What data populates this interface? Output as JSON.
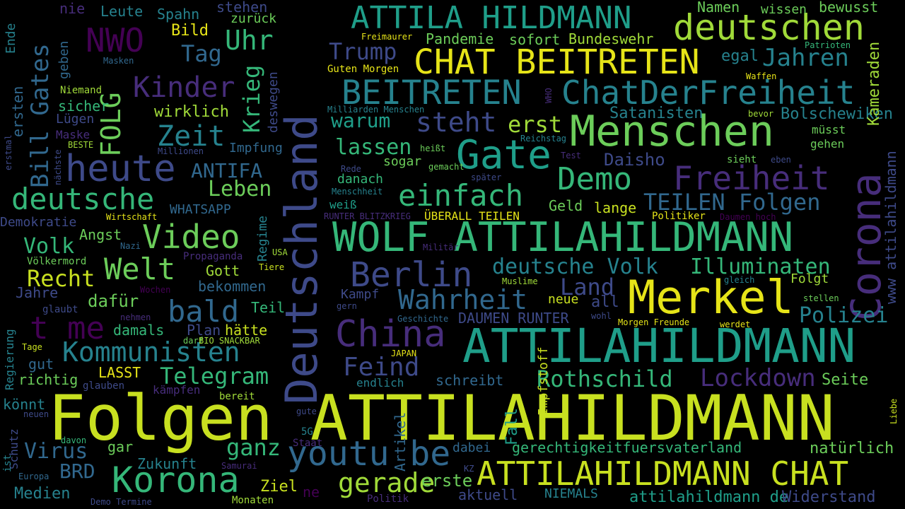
{
  "palette": {
    "background": "#000000",
    "lime": "#c8e020",
    "yellow": "#e6e418",
    "green": "#6ccd5a",
    "teal_green": "#35b779",
    "teal": "#1f9e89",
    "blue_teal": "#26828e",
    "blue": "#31688e",
    "indigo": "#3e4a89",
    "purple": "#472d7b",
    "dark_purple": "#440154"
  },
  "words": [
    {
      "text": "Folgen ATTILAHILDMANN",
      "color": "#c8e020"
    },
    {
      "text": "Deutschland",
      "color": "#3e4a89"
    },
    {
      "text": "ATTILAHILDMANN",
      "color": "#1f9e89"
    },
    {
      "text": "Menschen",
      "color": "#6ccd5a"
    },
    {
      "text": "WOLF ATTILAHILDMANN",
      "color": "#35b779"
    },
    {
      "text": "Merkel",
      "color": "#e6e418"
    },
    {
      "text": "Corona",
      "color": "#472d7b"
    },
    {
      "text": "Korona",
      "color": "#35b779"
    },
    {
      "text": "ATTILAHILDMANN CHAT",
      "color": "#c8e020"
    },
    {
      "text": "ATTILA HILDMANN",
      "color": "#1f9e89"
    },
    {
      "text": "deutschen",
      "color": "#a0da39"
    },
    {
      "text": "CHAT BEITRETEN",
      "color": "#e6e418"
    },
    {
      "text": "BEITRETEN",
      "color": "#26828e"
    },
    {
      "text": "ChatDerFreiheit",
      "color": "#26828e"
    },
    {
      "text": "Gate",
      "color": "#1f9e89"
    },
    {
      "text": "China",
      "color": "#472d7b"
    },
    {
      "text": "youtu be",
      "color": "#31688e"
    },
    {
      "text": "Berlin",
      "color": "#3e4a89"
    },
    {
      "text": "Video",
      "color": "#6ccd5a"
    },
    {
      "text": "Welt",
      "color": "#6ccd5a"
    },
    {
      "text": "heute",
      "color": "#3e4a89"
    },
    {
      "text": "Freiheit",
      "color": "#472d7b"
    },
    {
      "text": "einfach",
      "color": "#35b779"
    },
    {
      "text": "Demo",
      "color": "#35b779"
    },
    {
      "text": "Kommunisten",
      "color": "#26828e"
    },
    {
      "text": "bald",
      "color": "#31688e"
    },
    {
      "text": "t me",
      "color": "#440154"
    },
    {
      "text": "deutsche",
      "color": "#35b779"
    },
    {
      "text": "Kinder",
      "color": "#472d7b"
    },
    {
      "text": "NWO",
      "color": "#440154"
    },
    {
      "text": "FOLG",
      "color": "#6ccd5a"
    },
    {
      "text": "Bill Gates",
      "color": "#31688e"
    },
    {
      "text": "Zeit",
      "color": "#26828e"
    },
    {
      "text": "Wahrheit",
      "color": "#31688e"
    },
    {
      "text": "Lockdown",
      "color": "#472d7b"
    },
    {
      "text": "Rothschild",
      "color": "#35b779"
    },
    {
      "text": "gerade",
      "color": "#a0da39"
    },
    {
      "text": "Feind",
      "color": "#3e4a89"
    },
    {
      "text": "Telegram",
      "color": "#35b779"
    },
    {
      "text": "ganz",
      "color": "#35b779"
    },
    {
      "text": "Recht",
      "color": "#c8e020"
    },
    {
      "text": "deutsche Volk",
      "color": "#26828e"
    },
    {
      "text": "Illuminaten",
      "color": "#35b779"
    },
    {
      "text": "Jahren",
      "color": "#26828e"
    },
    {
      "text": "Trump",
      "color": "#3e4a89"
    },
    {
      "text": "Uhr",
      "color": "#35b779"
    },
    {
      "text": "Krieg",
      "color": "#35b779"
    },
    {
      "text": "Tag",
      "color": "#31688e"
    },
    {
      "text": "steht",
      "color": "#3e4a89"
    },
    {
      "text": "erst",
      "color": "#a0da39"
    },
    {
      "text": "lassen",
      "color": "#35b779"
    },
    {
      "text": "warum",
      "color": "#1f9e89"
    },
    {
      "text": "Polizei",
      "color": "#26828e"
    },
    {
      "text": "Volk",
      "color": "#35b779"
    },
    {
      "text": "Leben",
      "color": "#6ccd5a"
    },
    {
      "text": "ANTIFA",
      "color": "#31688e"
    },
    {
      "text": "Land",
      "color": "#3e4a89"
    },
    {
      "text": "TEILEN Folgen",
      "color": "#31688e"
    },
    {
      "text": "Virus",
      "color": "#31688e"
    },
    {
      "text": "BRD",
      "color": "#31688e"
    },
    {
      "text": "Satanisten",
      "color": "#26828e"
    },
    {
      "text": "Bolschewiken",
      "color": "#26828e"
    },
    {
      "text": "Daisho",
      "color": "#3e4a89"
    },
    {
      "text": "Kameraden",
      "color": "#a0da39"
    },
    {
      "text": "www attilahildmann",
      "color": "#3e4a89"
    },
    {
      "text": "gerechtigkeitfuersvaterland",
      "color": "#35b779"
    },
    {
      "text": "attilahildmann de",
      "color": "#1f9e89"
    },
    {
      "text": "Widerstand",
      "color": "#3e4a89"
    },
    {
      "text": "natürlich",
      "color": "#6ccd5a"
    },
    {
      "text": "Seite",
      "color": "#6ccd5a"
    },
    {
      "text": "Impfstoff",
      "color": "#c8e020"
    },
    {
      "text": "Artikel",
      "color": "#31688e"
    },
    {
      "text": "Fall",
      "color": "#1f9e89"
    },
    {
      "text": "Zukunft",
      "color": "#26828e"
    },
    {
      "text": "Medien",
      "color": "#26828e"
    },
    {
      "text": "Ziel",
      "color": "#c8e020"
    },
    {
      "text": "Bundeswehr",
      "color": "#a0da39"
    },
    {
      "text": "Pandemie",
      "color": "#6ccd5a"
    },
    {
      "text": "sofort",
      "color": "#6ccd5a"
    },
    {
      "text": "Namen",
      "color": "#6ccd5a"
    },
    {
      "text": "wissen",
      "color": "#6ccd5a"
    },
    {
      "text": "bewusst",
      "color": "#6ccd5a"
    },
    {
      "text": "egal",
      "color": "#26828e"
    },
    {
      "text": "Leute",
      "color": "#26828e"
    },
    {
      "text": "Spahn",
      "color": "#26828e"
    },
    {
      "text": "stehen",
      "color": "#3e4a89"
    },
    {
      "text": "zurück",
      "color": "#6ccd5a"
    },
    {
      "text": "Bild",
      "color": "#e6e418"
    },
    {
      "text": "nie",
      "color": "#472d7b"
    },
    {
      "text": "Ende",
      "color": "#26828e"
    },
    {
      "text": "geben",
      "color": "#31688e"
    },
    {
      "text": "ersten",
      "color": "#31688e"
    },
    {
      "text": "Lügen",
      "color": "#3e4a89"
    },
    {
      "text": "Maske",
      "color": "#472d7b"
    },
    {
      "text": "BESTE",
      "color": "#a0da39"
    },
    {
      "text": "sicher",
      "color": "#35b779"
    },
    {
      "text": "Niemand",
      "color": "#a0da39"
    },
    {
      "text": "Masken",
      "color": "#31688e"
    },
    {
      "text": "wirklich",
      "color": "#a0da39"
    },
    {
      "text": "deswegen",
      "color": "#3e4a89"
    },
    {
      "text": "Impfung",
      "color": "#31688e"
    },
    {
      "text": "Millionen",
      "color": "#3e4a89"
    },
    {
      "text": "nächste",
      "color": "#3e4a89"
    },
    {
      "text": "erstmal",
      "color": "#3e4a89"
    },
    {
      "text": "Demokratie",
      "color": "#3e4a89"
    },
    {
      "text": "WHATSAPP",
      "color": "#31688e"
    },
    {
      "text": "Wirtschaft",
      "color": "#e6e418"
    },
    {
      "text": "Angst",
      "color": "#6ccd5a"
    },
    {
      "text": "Regime",
      "color": "#26828e"
    },
    {
      "text": "Nazi",
      "color": "#31688e"
    },
    {
      "text": "Propaganda",
      "color": "#472d7b"
    },
    {
      "text": "Völkermord",
      "color": "#6ccd5a"
    },
    {
      "text": "Gott",
      "color": "#a0da39"
    },
    {
      "text": "USA",
      "color": "#a0da39"
    },
    {
      "text": "Tiere",
      "color": "#c8e020"
    },
    {
      "text": "bekommen",
      "color": "#31688e"
    },
    {
      "text": "Jahre",
      "color": "#3e4a89"
    },
    {
      "text": "Wochen",
      "color": "#440154"
    },
    {
      "text": "dafür",
      "color": "#6ccd5a"
    },
    {
      "text": "Teil",
      "color": "#35b779"
    },
    {
      "text": "glaubt",
      "color": "#3e4a89"
    },
    {
      "text": "nehmen",
      "color": "#472d7b"
    },
    {
      "text": "damals",
      "color": "#35b779"
    },
    {
      "text": "Plan",
      "color": "#3e4a89"
    },
    {
      "text": "hätte",
      "color": "#c8e020"
    },
    {
      "text": "Regierung",
      "color": "#26828e"
    },
    {
      "text": "Tage",
      "color": "#c8e020"
    },
    {
      "text": "darf",
      "color": "#6ccd5a"
    },
    {
      "text": "BIO SNACKBAR",
      "color": "#a0da39"
    },
    {
      "text": "gut",
      "color": "#31688e"
    },
    {
      "text": "richtig",
      "color": "#6ccd5a"
    },
    {
      "text": "LASST",
      "color": "#e6e418"
    },
    {
      "text": "glauben",
      "color": "#3e4a89"
    },
    {
      "text": "kämpfen",
      "color": "#472d7b"
    },
    {
      "text": "bereit",
      "color": "#a0da39"
    },
    {
      "text": "könnt",
      "color": "#26828e"
    },
    {
      "text": "neuen",
      "color": "#3e4a89"
    },
    {
      "text": "gute",
      "color": "#3e4a89"
    },
    {
      "text": "Schutz",
      "color": "#3e4a89"
    },
    {
      "text": "davon",
      "color": "#35b779"
    },
    {
      "text": "ist",
      "color": "#26828e"
    },
    {
      "text": "gar",
      "color": "#6ccd5a"
    },
    {
      "text": "5G",
      "color": "#26828e"
    },
    {
      "text": "Staat",
      "color": "#472d7b"
    },
    {
      "text": "Samurai",
      "color": "#472d7b"
    },
    {
      "text": "Europa",
      "color": "#31688e"
    },
    {
      "text": "ne",
      "color": "#440154"
    },
    {
      "text": "Demo Termine",
      "color": "#3e4a89"
    },
    {
      "text": "Monaten",
      "color": "#a0da39"
    },
    {
      "text": "Politik",
      "color": "#472d7b"
    },
    {
      "text": "aktuell",
      "color": "#3e4a89"
    },
    {
      "text": "NIEMALS",
      "color": "#26828e"
    },
    {
      "text": "KZ",
      "color": "#3e4a89"
    },
    {
      "text": "Liebe",
      "color": "#c8e020"
    },
    {
      "text": "Freimaurer",
      "color": "#e6e418"
    },
    {
      "text": "Guten Morgen",
      "color": "#e6e418"
    },
    {
      "text": "Patrioten",
      "color": "#35b779"
    },
    {
      "text": "Waffen",
      "color": "#e6e418"
    },
    {
      "text": "WHO",
      "color": "#472d7b"
    },
    {
      "text": "Milliarden Menschen",
      "color": "#26828e"
    },
    {
      "text": "bevor",
      "color": "#a0da39"
    },
    {
      "text": "müsst",
      "color": "#6ccd5a"
    },
    {
      "text": "gehen",
      "color": "#6ccd5a"
    },
    {
      "text": "Reichstag",
      "color": "#26828e"
    },
    {
      "text": "heißt",
      "color": "#6ccd5a"
    },
    {
      "text": "gemacht",
      "color": "#6ccd5a"
    },
    {
      "text": "sogar",
      "color": "#6ccd5a"
    },
    {
      "text": "Rede",
      "color": "#3e4a89"
    },
    {
      "text": "Test",
      "color": "#472d7b"
    },
    {
      "text": "sieht",
      "color": "#6ccd5a"
    },
    {
      "text": "eben",
      "color": "#3e4a89"
    },
    {
      "text": "später",
      "color": "#3e4a89"
    },
    {
      "text": "danach",
      "color": "#35b779"
    },
    {
      "text": "Menschheit",
      "color": "#26828e"
    },
    {
      "text": "weiß",
      "color": "#1f9e89"
    },
    {
      "text": "RUNTER BLITZKRIEG",
      "color": "#472d7b"
    },
    {
      "text": "ÜBERALL TEILEN",
      "color": "#e6e418"
    },
    {
      "text": "Geld",
      "color": "#6ccd5a"
    },
    {
      "text": "lange",
      "color": "#c8e020"
    },
    {
      "text": "Politiker",
      "color": "#e6e418"
    },
    {
      "text": "Daumen hoch",
      "color": "#440154"
    },
    {
      "text": "Militär",
      "color": "#472d7b"
    },
    {
      "text": "Muslime",
      "color": "#a0da39"
    },
    {
      "text": "Kampf",
      "color": "#3e4a89"
    },
    {
      "text": "gern",
      "color": "#3e4a89"
    },
    {
      "text": "neue",
      "color": "#c8e020"
    },
    {
      "text": "all",
      "color": "#3e4a89"
    },
    {
      "text": "wohl",
      "color": "#3e4a89"
    },
    {
      "text": "gleich",
      "color": "#26828e"
    },
    {
      "text": "Folgt",
      "color": "#a0da39"
    },
    {
      "text": "stellen",
      "color": "#6ccd5a"
    },
    {
      "text": "DAUMEN RUNTER",
      "color": "#3e4a89"
    },
    {
      "text": "Morgen Freunde",
      "color": "#e6e418"
    },
    {
      "text": "werdet",
      "color": "#e6e418"
    },
    {
      "text": "Geschichte",
      "color": "#31688e"
    },
    {
      "text": "JAPAN",
      "color": "#e6e418"
    },
    {
      "text": "schreibt",
      "color": "#31688e"
    },
    {
      "text": "endlich",
      "color": "#26828e"
    },
    {
      "text": "erste",
      "color": "#6ccd5a"
    },
    {
      "text": "dabei",
      "color": "#31688e"
    }
  ]
}
